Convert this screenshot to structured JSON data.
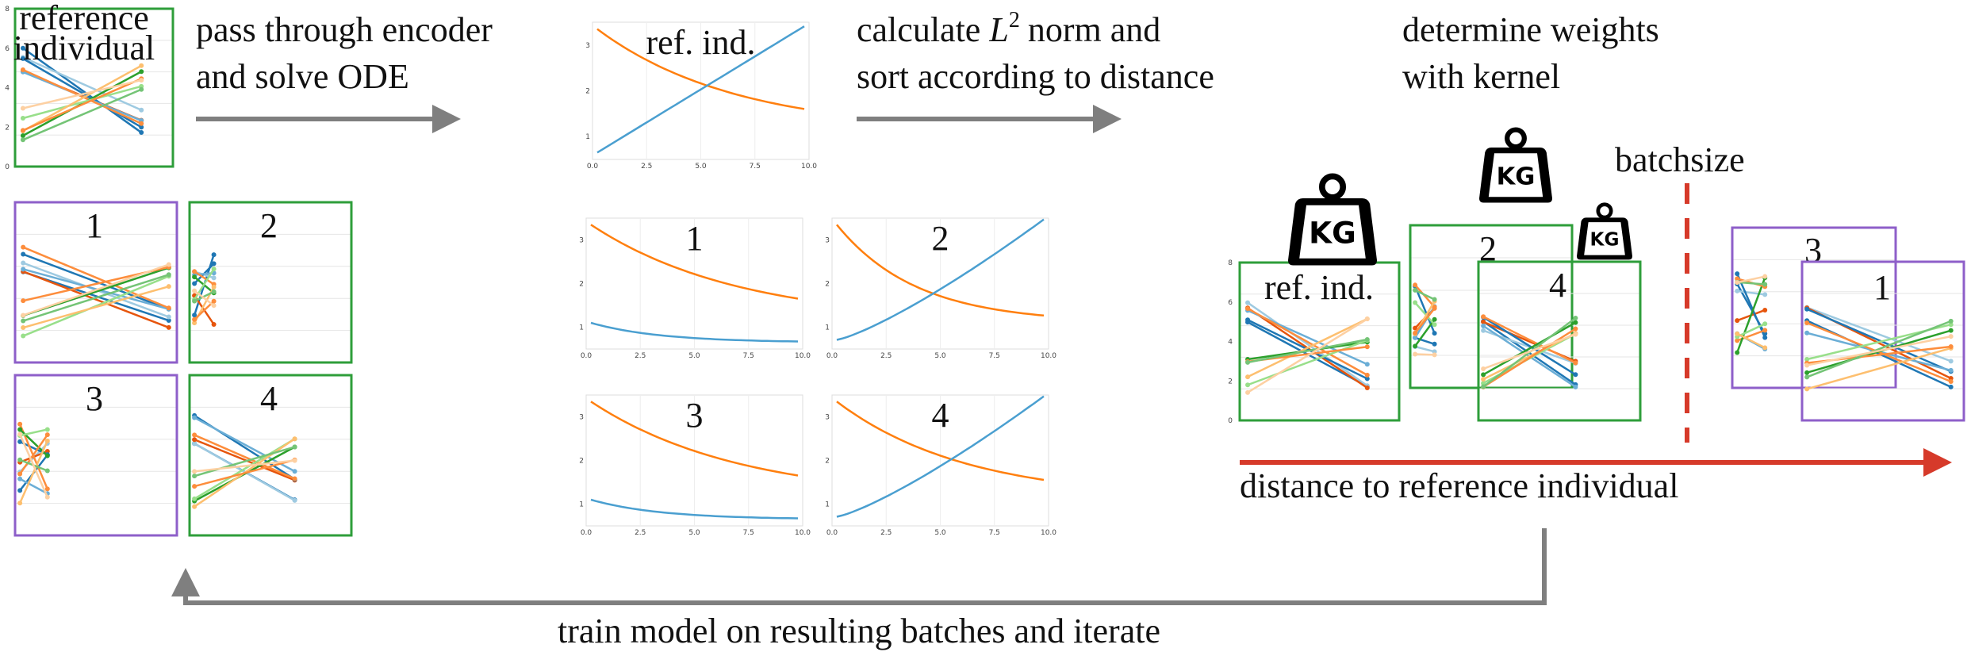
{
  "reference_plot": {
    "label_lines": [
      "reference",
      "individual"
    ],
    "yticks": [
      "0",
      "2",
      "4",
      "6",
      "8"
    ]
  },
  "steps": [
    {
      "lines": [
        "pass through encoder",
        "and solve ODE"
      ]
    },
    {
      "prefix": "calculate",
      "symbol": "L",
      "exponent": "2",
      "suffix": "norm and",
      "line2": "sort according to distance"
    },
    {
      "lines": [
        "determine weights",
        "with kernel"
      ]
    }
  ],
  "individuals": [
    "1",
    "2",
    "3",
    "4"
  ],
  "ode_plots": {
    "ref_label": "ref. ind.",
    "xticks": [
      "0.0",
      "2.5",
      "5.0",
      "7.5",
      "10.0"
    ],
    "yticks": [
      "1",
      "2",
      "3"
    ]
  },
  "batches": {
    "ref_label": "ref. ind.",
    "weight_label": "KG",
    "batchsize_label": "batchsize",
    "axis_label": "distance to reference individual",
    "yticks": [
      "0",
      "2",
      "4",
      "6",
      "8"
    ]
  },
  "loop_label": "train model on resulting batches and iterate"
}
